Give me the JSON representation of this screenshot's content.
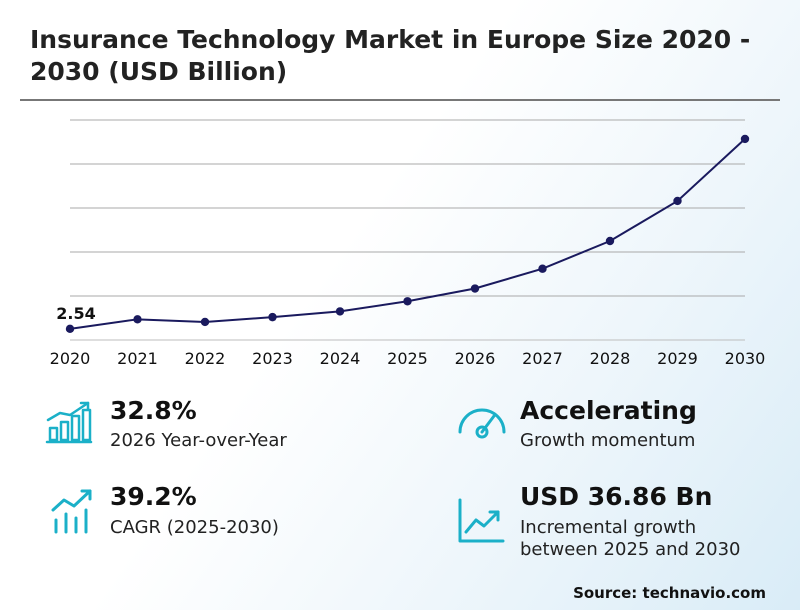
{
  "title": "Insurance Technology Market in Europe Size 2020 - 2030 (USD Billion)",
  "accent_color": "#1a1a5e",
  "icon_color": "#1bb0c8",
  "chart_data": {
    "type": "line",
    "title": "Insurance Technology Market in Europe Size 2020 - 2030 (USD Billion)",
    "x": [
      "2020",
      "2021",
      "2022",
      "2023",
      "2024",
      "2025",
      "2026",
      "2027",
      "2028",
      "2029",
      "2030"
    ],
    "series": [
      {
        "values": [
          2.54,
          4.7,
          4.1,
          5.2,
          6.5,
          8.8,
          11.7,
          16.2,
          22.5,
          31.6,
          45.7
        ]
      }
    ],
    "data_labels": [
      {
        "x": "2020",
        "text": "2.54"
      }
    ],
    "ylim": [
      0,
      50
    ],
    "grid": true,
    "show_y_ticks": false
  },
  "stats": [
    {
      "value": "32.8%",
      "label": "2026 Year-over-Year",
      "icon": "bar-chart-growth-icon"
    },
    {
      "value": "Accelerating",
      "label": "Growth momentum",
      "icon": "gauge-icon"
    },
    {
      "value": "39.2%",
      "label": "CAGR (2025-2030)",
      "icon": "trend-bars-icon"
    },
    {
      "value": "USD 36.86 Bn",
      "label_lines": [
        "Incremental growth",
        "between 2025 and 2030"
      ],
      "icon": "line-chart-up-icon"
    }
  ],
  "source": "Source: technavio.com"
}
